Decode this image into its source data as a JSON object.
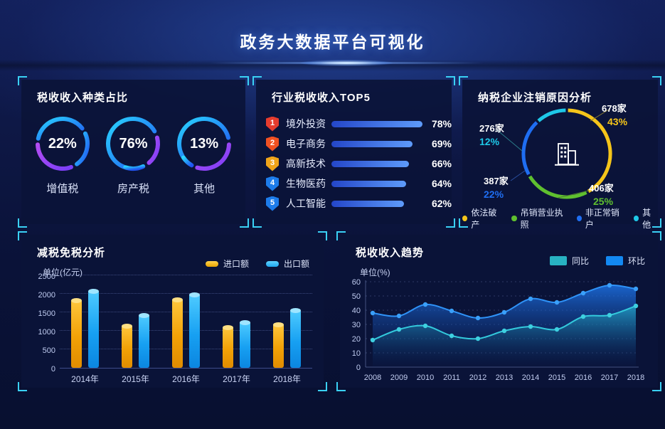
{
  "header": {
    "title": "政务大数据平台可视化"
  },
  "accent_colors": {
    "bracket": "#3ad1f5",
    "panel_bg": "#0b1338"
  },
  "chart_data": [
    {
      "id": "tax_type_share",
      "type": "pie",
      "title": "税收收入种类占比",
      "items": [
        {
          "label": "增值税",
          "value": 22,
          "percent_label": "22%"
        },
        {
          "label": "房产税",
          "value": 76,
          "percent_label": "76%"
        },
        {
          "label": "其他",
          "value": 13,
          "percent_label": "13%"
        }
      ],
      "ring_colors": {
        "main_start": "#29d5ff",
        "main_end": "#2153f0",
        "accent_start": "#b44df2",
        "accent_end": "#7a3ef8"
      }
    },
    {
      "id": "industry_tax_top5",
      "type": "bar",
      "orientation": "horizontal",
      "title": "行业税收收入TOP5",
      "ranks": [
        "1",
        "2",
        "3",
        "4",
        "5"
      ],
      "categories": [
        "境外投资",
        "电子商务",
        "高新技术",
        "生物医药",
        "人工智能"
      ],
      "values": [
        78,
        69,
        66,
        64,
        62
      ],
      "value_labels": [
        "78%",
        "69%",
        "66%",
        "64%",
        "62%"
      ],
      "badge_colors": [
        "#e63c2e",
        "#f05123",
        "#f0a41a",
        "#1d7ceb",
        "#1d7ceb"
      ]
    },
    {
      "id": "deregistration_reasons",
      "type": "pie",
      "title": "纳税企业注销原因分析",
      "items": [
        {
          "label": "依法破产",
          "count_label": "678家",
          "percent_label": "43%",
          "value": 43,
          "color": "#f5c51a"
        },
        {
          "label": "吊销营业执照",
          "count_label": "406家",
          "percent_label": "25%",
          "value": 25,
          "color": "#5fc02f"
        },
        {
          "label": "非正常销户",
          "count_label": "387家",
          "percent_label": "22%",
          "value": 22,
          "color": "#1f6ef2"
        },
        {
          "label": "其他",
          "count_label": "276家",
          "percent_label": "12%",
          "value": 12,
          "color": "#1ec8e8"
        }
      ]
    },
    {
      "id": "tax_reduction",
      "type": "bar",
      "title": "减税免税分析",
      "ylabel": "单位(亿元)",
      "categories": [
        "2014年",
        "2015年",
        "2016年",
        "2017年",
        "2018年"
      ],
      "series": [
        {
          "name": "进口额",
          "color": "#f5a60a",
          "values": [
            1830,
            1140,
            1840,
            1100,
            1170
          ]
        },
        {
          "name": "出口额",
          "color": "#22aaf0",
          "values": [
            2080,
            1430,
            1980,
            1230,
            1560
          ]
        }
      ],
      "ylim": [
        0,
        2500
      ],
      "yticks": [
        0,
        500,
        1000,
        1500,
        2000,
        2500
      ]
    },
    {
      "id": "tax_trend",
      "type": "area",
      "title": "税收收入趋势",
      "ylabel": "单位(%)",
      "x": [
        "2008",
        "2009",
        "2010",
        "2011",
        "2012",
        "2013",
        "2014",
        "2015",
        "2016",
        "2017",
        "2018"
      ],
      "series": [
        {
          "name": "同比",
          "color": "#2bb7c6",
          "values": [
            19,
            26.5,
            29,
            22,
            20,
            25.5,
            28.5,
            26.5,
            35.5,
            36.5,
            43
          ]
        },
        {
          "name": "环比",
          "color": "#1b86f0",
          "values": [
            38,
            36,
            44,
            39.5,
            34.5,
            38.5,
            48,
            45.5,
            52,
            57.5,
            55
          ]
        }
      ],
      "ylim": [
        0,
        60
      ],
      "yticks": [
        0,
        10,
        20,
        30,
        40,
        50,
        60
      ]
    }
  ]
}
